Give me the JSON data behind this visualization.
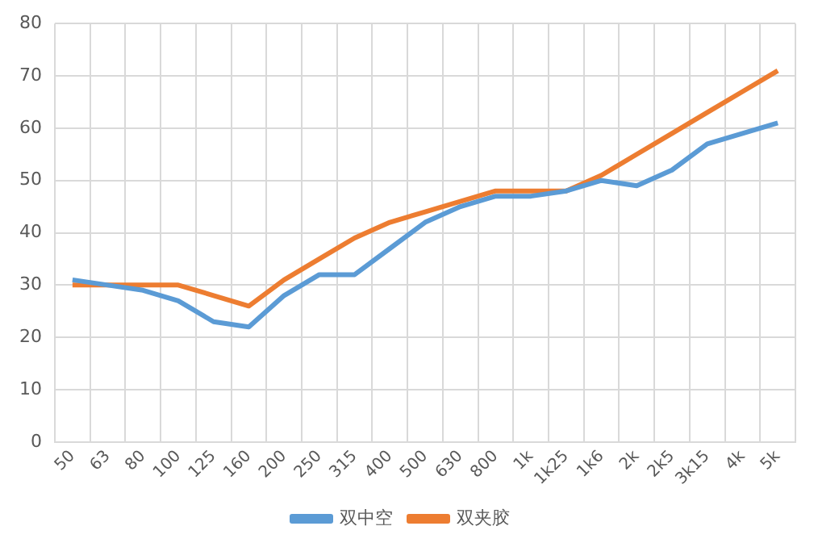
{
  "chart_data": {
    "type": "line",
    "categories": [
      "50",
      "63",
      "80",
      "100",
      "125",
      "160",
      "200",
      "250",
      "315",
      "400",
      "500",
      "630",
      "800",
      "1k",
      "1k25",
      "1k6",
      "2k",
      "2k5",
      "3k15",
      "4k",
      "5k"
    ],
    "series": [
      {
        "name": "双中空",
        "color": "#5b9bd5",
        "values": [
          31,
          30,
          29,
          27,
          23,
          22,
          28,
          32,
          32,
          37,
          42,
          45,
          47,
          47,
          48,
          50,
          49,
          52,
          57,
          59,
          61
        ]
      },
      {
        "name": "双夹胶",
        "color": "#ed7d31",
        "values": [
          30,
          30,
          30,
          30,
          28,
          26,
          31,
          35,
          39,
          42,
          44,
          46,
          48,
          48,
          48,
          51,
          55,
          59,
          63,
          67,
          71
        ]
      }
    ],
    "ylim": [
      0,
      80
    ],
    "yticks": [
      0,
      10,
      20,
      30,
      40,
      50,
      60,
      70,
      80
    ],
    "grid": true,
    "legend": "bottom",
    "marker": "none",
    "line_style": "solid"
  }
}
